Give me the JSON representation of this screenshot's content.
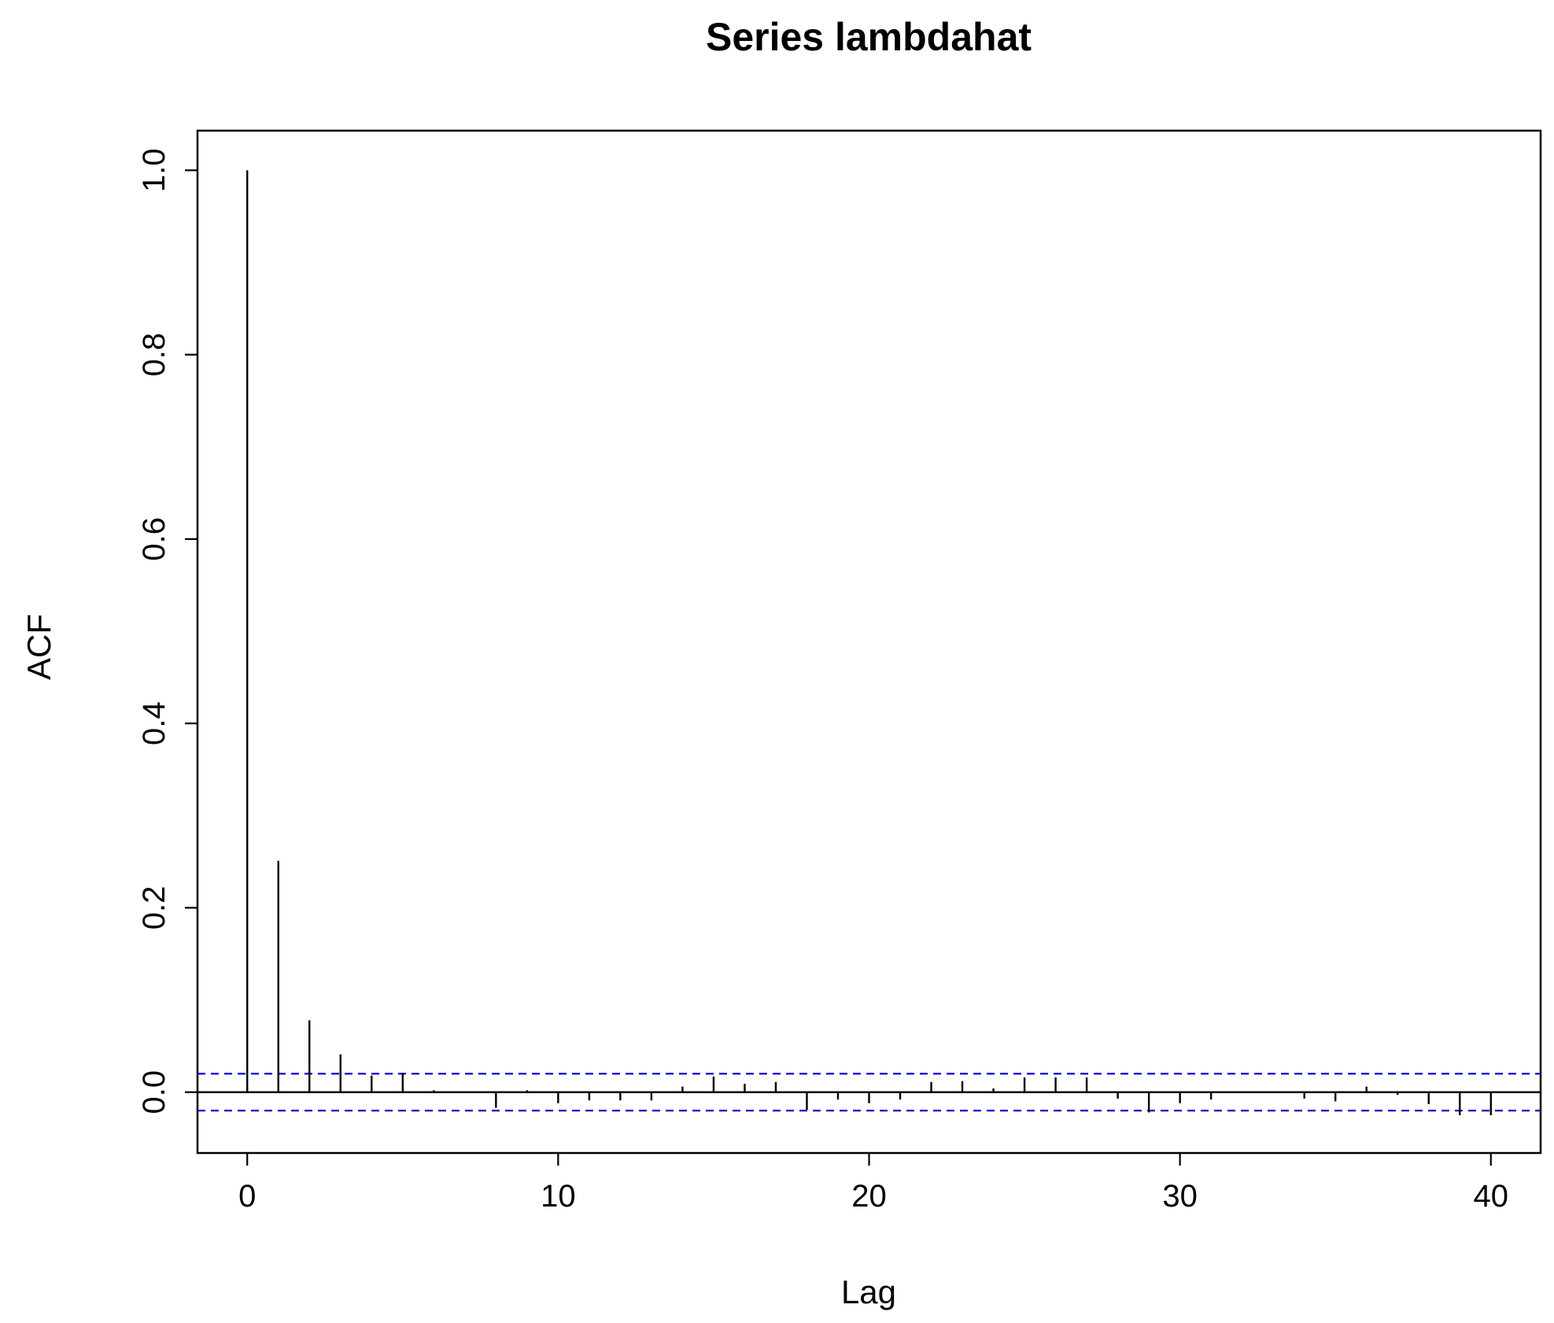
{
  "chart_data": {
    "type": "bar",
    "title": "Series  lambdahat",
    "xlabel": "Lag",
    "ylabel": "ACF",
    "xlim": [
      -1.6,
      41.6
    ],
    "ylim": [
      -0.066,
      1.043
    ],
    "xticks": [
      "0",
      "10",
      "20",
      "30",
      "40"
    ],
    "yticks": [
      "0.0",
      "0.2",
      "0.4",
      "0.6",
      "0.8",
      "1.0"
    ],
    "ci_bounds": [
      0.02,
      -0.02
    ],
    "grid": false,
    "colors": {
      "bars": "#000000",
      "ci_lines": "#0000cc",
      "axes": "#000000"
    },
    "series": [
      {
        "lag": [
          0,
          1,
          2,
          3,
          4,
          5,
          6,
          7,
          8,
          9,
          10,
          11,
          12,
          13,
          14,
          15,
          16,
          17,
          18,
          19,
          20,
          21,
          22,
          23,
          24,
          25,
          26,
          27,
          28,
          29,
          30,
          31,
          32,
          33,
          34,
          35,
          36,
          37,
          38,
          39,
          40
        ],
        "values": [
          1.0,
          0.251,
          0.078,
          0.041,
          0.018,
          0.021,
          0.002,
          -0.001,
          -0.017,
          0.002,
          -0.012,
          -0.009,
          -0.009,
          -0.009,
          0.006,
          0.017,
          0.009,
          0.011,
          -0.019,
          -0.008,
          -0.012,
          -0.008,
          0.011,
          0.012,
          0.004,
          0.016,
          0.016,
          0.016,
          -0.007,
          -0.022,
          -0.012,
          -0.008,
          -0.001,
          0.001,
          -0.007,
          -0.01,
          0.006,
          -0.003,
          -0.013,
          -0.025,
          -0.025
        ]
      }
    ]
  }
}
